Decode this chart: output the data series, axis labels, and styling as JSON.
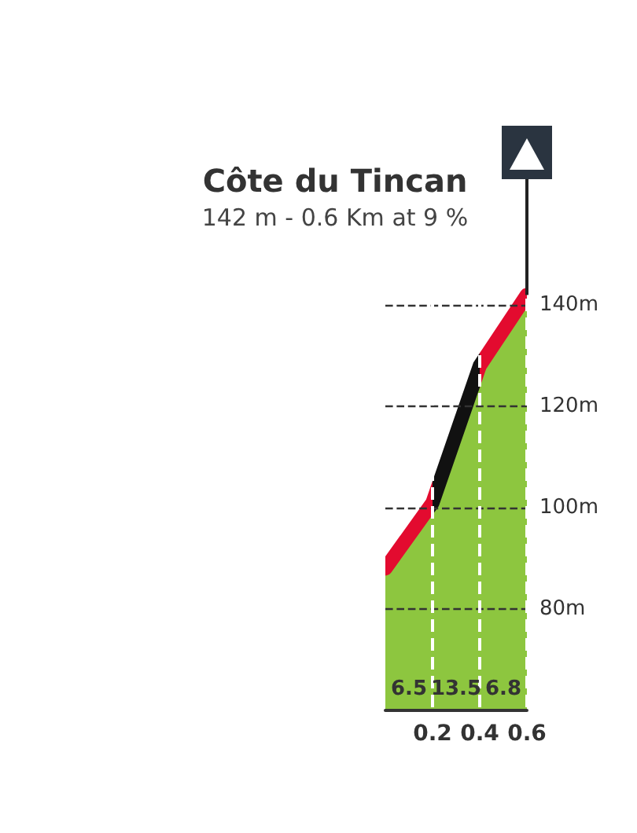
{
  "chart_data": {
    "type": "area",
    "title": "Côte du Tincan",
    "subtitle": "142 m - 0.6 Km at 9 %",
    "x": [
      0,
      0.2,
      0.4,
      0.6
    ],
    "series": [
      {
        "color": "#8dc63f",
        "values": [
          88,
          101,
          128,
          142
        ]
      }
    ],
    "colors": [
      "#e30b2f",
      "#111111",
      "#e30b2f"
    ],
    "annotations": [
      "6.5",
      "13.5",
      "6.8"
    ],
    "xlim": [
      0,
      0.6
    ],
    "xticks": [
      0.2,
      0.4,
      0.6
    ],
    "ylim": [
      60,
      145
    ],
    "yticks": [
      {
        "value": 80,
        "label": "80m"
      },
      {
        "value": 100,
        "label": "100m"
      },
      {
        "value": 120,
        "label": "120m"
      },
      {
        "value": 140,
        "label": "140m"
      }
    ],
    "grid": true,
    "line_style": "dashed"
  }
}
